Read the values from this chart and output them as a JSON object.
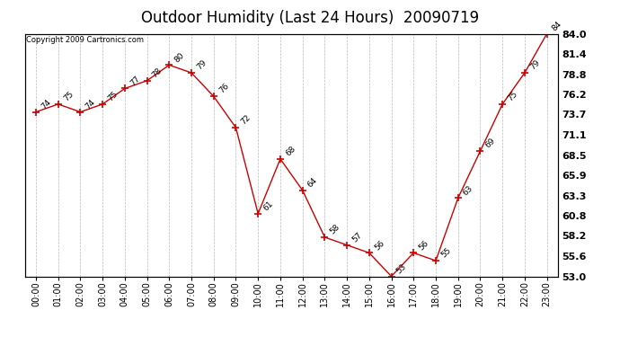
{
  "title": "Outdoor Humidity (Last 24 Hours)  20090719",
  "copyright": "Copyright 2009 Cartronics.com",
  "x_labels": [
    "00:00",
    "01:00",
    "02:00",
    "03:00",
    "04:00",
    "05:00",
    "06:00",
    "07:00",
    "08:00",
    "09:00",
    "10:00",
    "11:00",
    "12:00",
    "13:00",
    "14:00",
    "15:00",
    "16:00",
    "17:00",
    "18:00",
    "19:00",
    "20:00",
    "21:00",
    "22:00",
    "23:00"
  ],
  "x_values": [
    0,
    1,
    2,
    3,
    4,
    5,
    6,
    7,
    8,
    9,
    10,
    11,
    12,
    13,
    14,
    15,
    16,
    17,
    18,
    19,
    20,
    21,
    22,
    23
  ],
  "y_values": [
    74,
    75,
    74,
    75,
    77,
    78,
    80,
    79,
    76,
    72,
    61,
    68,
    64,
    58,
    57,
    56,
    53,
    56,
    55,
    63,
    69,
    75,
    79,
    84
  ],
  "y_labels": [
    "53.0",
    "55.6",
    "58.2",
    "60.8",
    "63.3",
    "65.9",
    "68.5",
    "71.1",
    "73.7",
    "76.2",
    "78.8",
    "81.4",
    "84.0"
  ],
  "y_ticks": [
    53.0,
    55.6,
    58.2,
    60.8,
    63.3,
    65.9,
    68.5,
    71.1,
    73.7,
    76.2,
    78.8,
    81.4,
    84.0
  ],
  "ylim": [
    53.0,
    84.0
  ],
  "line_color": "#cc0000",
  "marker": "+",
  "marker_size": 6,
  "bg_color": "#ffffff",
  "grid_color": "#bbbbbb",
  "title_fontsize": 12,
  "tick_fontsize": 7,
  "annot_fontsize": 6.5,
  "copyright_fontsize": 6
}
